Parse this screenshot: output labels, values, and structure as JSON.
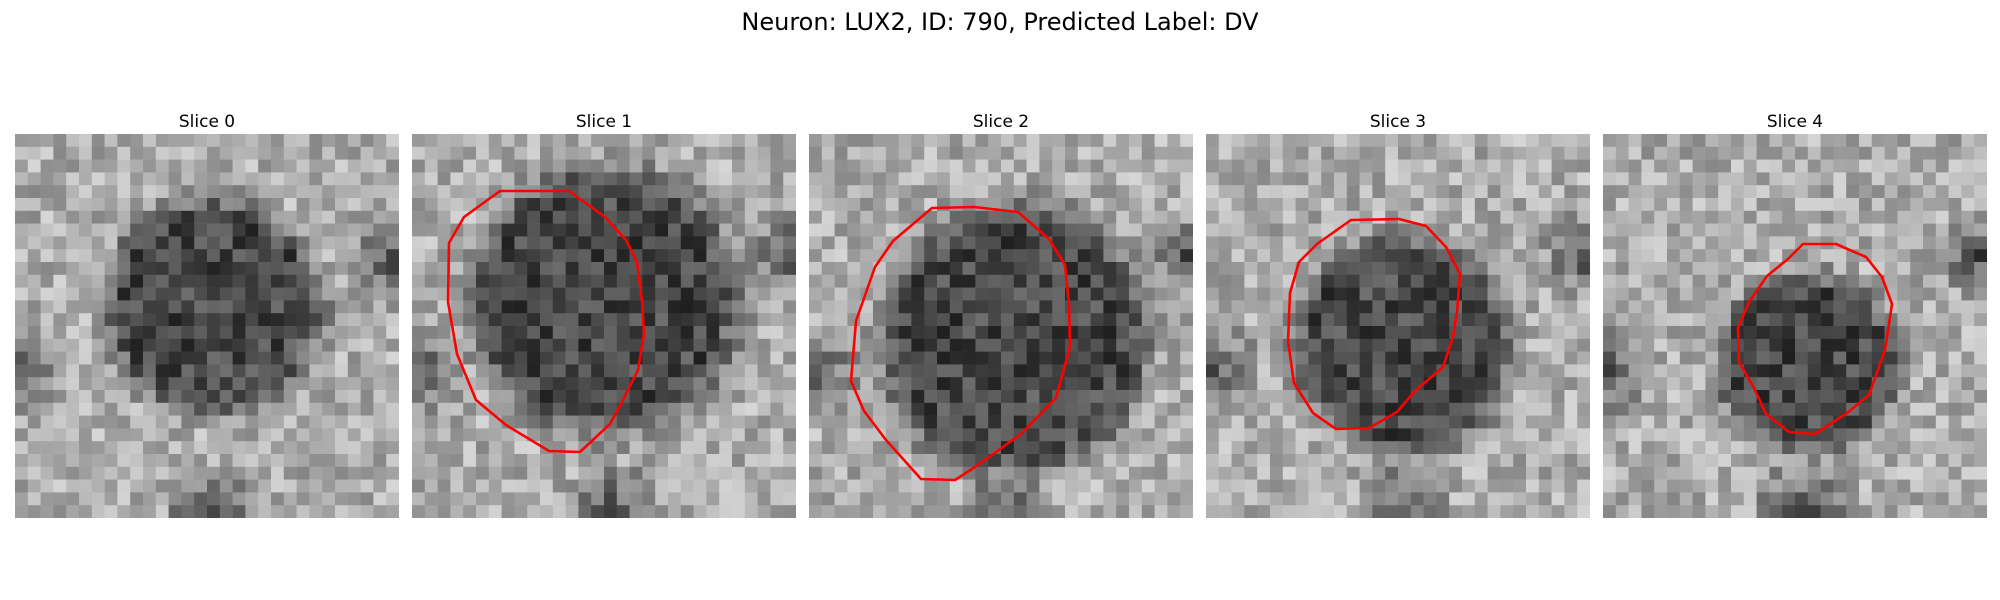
{
  "figure": {
    "title": "Neuron: LUX2, ID: 790, Predicted Label: DV"
  },
  "slices": [
    {
      "label": "Slice 0",
      "has_contour": false
    },
    {
      "label": "Slice 1",
      "has_contour": true
    },
    {
      "label": "Slice 2",
      "has_contour": true
    },
    {
      "label": "Slice 3",
      "has_contour": true
    },
    {
      "label": "Slice 4",
      "has_contour": true
    }
  ],
  "colors": {
    "contour": "#ff0000",
    "background": "#ffffff"
  },
  "image_grid": 30
}
